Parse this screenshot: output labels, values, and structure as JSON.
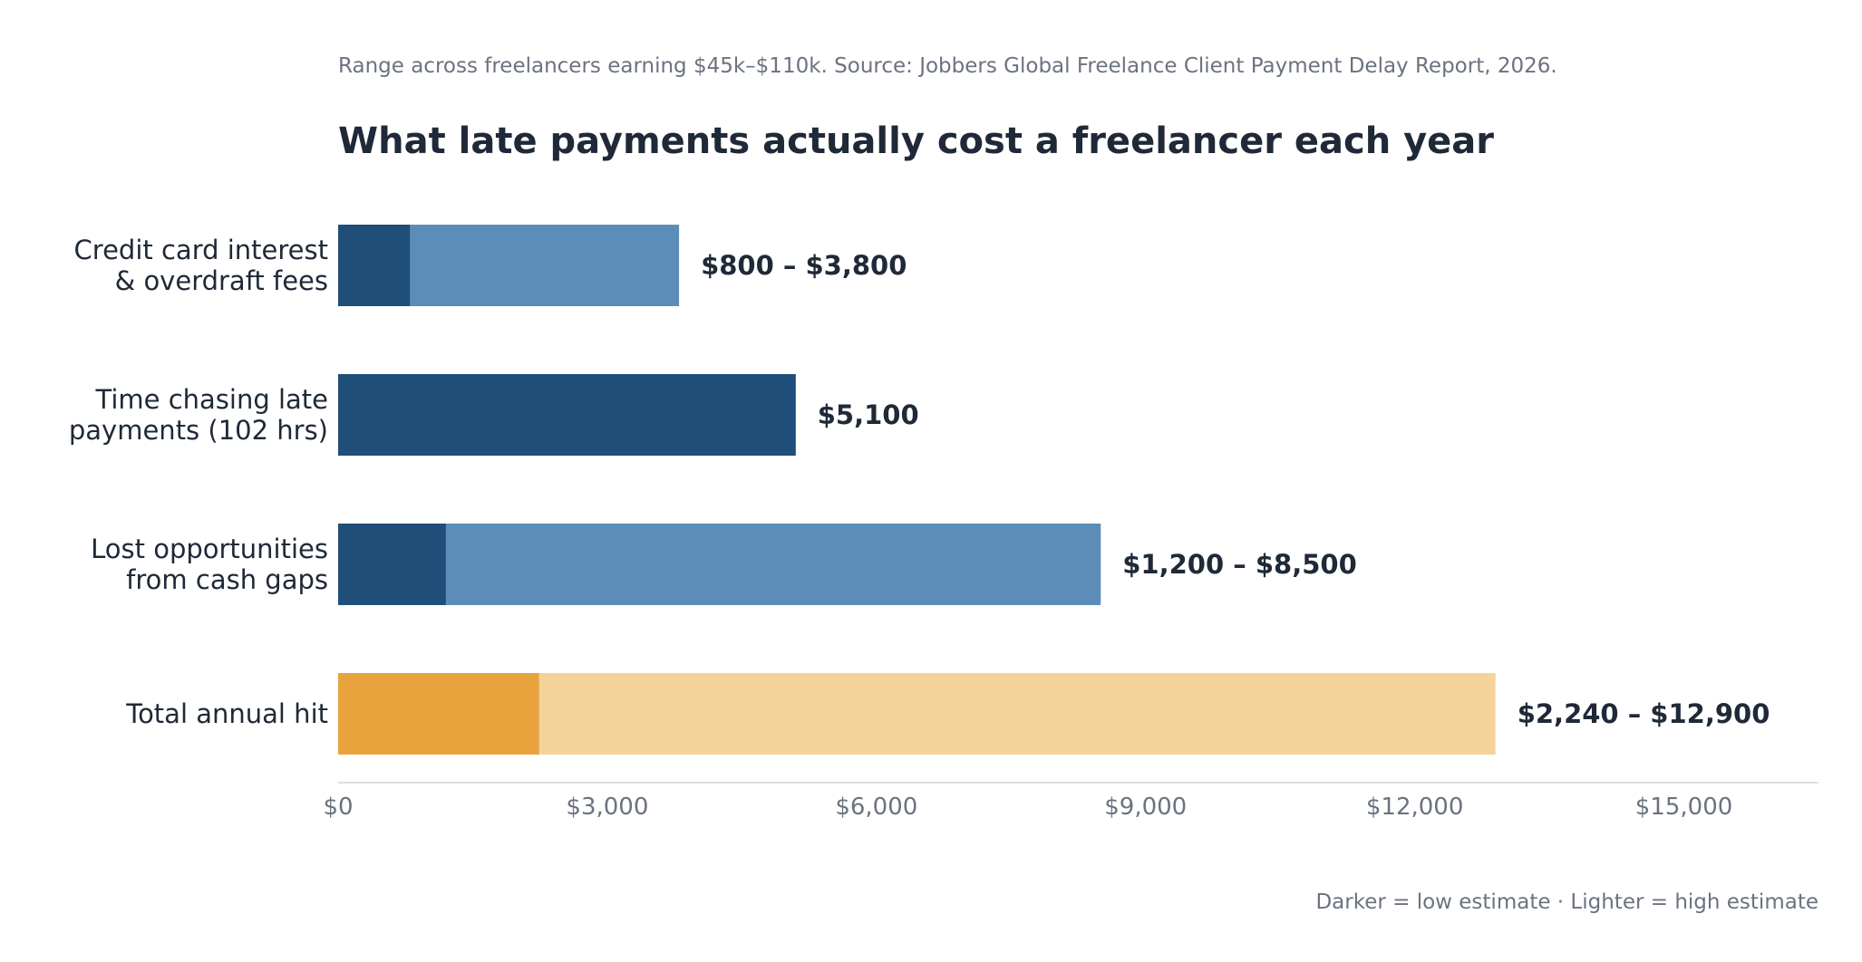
{
  "chart_data": {
    "type": "bar",
    "orientation": "horizontal",
    "subtitle": "Range across freelancers earning $45k–$110k. Source: Jobbers Global Freelance Client Payment Delay Report, 2026.",
    "title": "What late payments actually cost a freelancer each year",
    "categories": [
      {
        "lines": [
          "Credit card interest",
          "& overdraft fees"
        ]
      },
      {
        "lines": [
          "Time chasing late",
          "payments (102 hrs)"
        ]
      },
      {
        "lines": [
          "Lost opportunities",
          "from cash gaps"
        ]
      },
      {
        "lines": [
          "Total annual hit"
        ]
      }
    ],
    "series": [
      {
        "name": "Darker = low estimate",
        "values": [
          800,
          5100,
          1200,
          2240
        ]
      },
      {
        "name": "Lighter = high estimate",
        "values": [
          3800,
          5100,
          8500,
          12900
        ]
      }
    ],
    "value_labels": [
      "$800 – $3,800",
      "$5,100",
      "$1,200 – $8,500",
      "$2,240 – $12,900"
    ],
    "highlight_category_index": 3,
    "xlim": [
      0,
      16500
    ],
    "xticks": [
      0,
      3000,
      6000,
      9000,
      12000,
      15000
    ],
    "xtick_labels": [
      "$0",
      "$3,000",
      "$6,000",
      "$9,000",
      "$12,000",
      "$15,000"
    ],
    "legend_note": "Darker = low estimate · Lighter = high estimate",
    "legend_placement": "bottom-right",
    "grid": false,
    "colors": {
      "low": "#1f4e79",
      "high": "#5b8db8",
      "total_low": "#e8a33d",
      "total_high": "#f4d39b",
      "axis": "#d1d5db"
    }
  }
}
